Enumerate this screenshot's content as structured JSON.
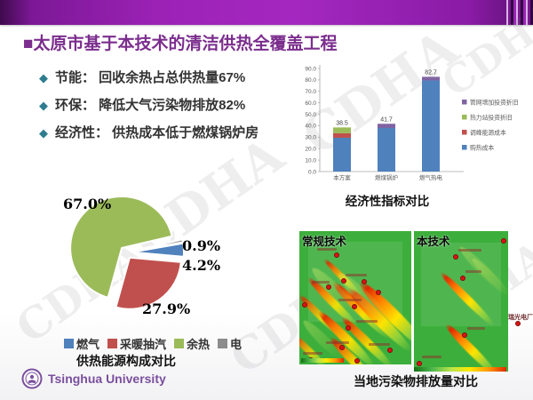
{
  "slide": {
    "header_title_marker": "■",
    "header_title": "太原市基于本技术的清洁供热全覆盖工程",
    "bullet_marker": "◆",
    "bullets": [
      "节能： 回收余热占总供热量67%",
      "环保： 降低大气污染物排放82%",
      "经济性： 供热成本低于燃煤锅炉房"
    ],
    "watermark_text": "CDHA",
    "footer_logo_text": "Tsinghua University"
  },
  "colors": {
    "header_purple": "#9C22B6",
    "title_purple": "#7B2E8D",
    "bullet_diamond_teal": "#2E7D8E",
    "excel_blue": "#4F81BD",
    "excel_red": "#C0504D",
    "excel_green": "#9BBB59",
    "excel_purple": "#8064A2",
    "excel_gray": "#8C8C8C",
    "map_green": "#3CAE3C",
    "tsinghua_purple": "#7A4F9D"
  },
  "maps": {
    "left_title": "常规技术",
    "right_title": "本技术",
    "side_label": "瑞光电厂",
    "caption": "当地污染物排放量对比"
  },
  "chart_data": [
    {
      "type": "bar",
      "subtype": "stacked",
      "caption": "经济性指标对比",
      "categories": [
        "本方案",
        "燃煤锅炉",
        "燃气热电"
      ],
      "series": [
        {
          "name": "购热成本",
          "color": "#4F81BD",
          "values": [
            29.5,
            38.0,
            79.5
          ]
        },
        {
          "name": "调峰能源成本",
          "color": "#C0504D",
          "values": [
            4.0,
            0,
            0
          ]
        },
        {
          "name": "热力站投资折旧",
          "color": "#9BBB59",
          "values": [
            5.0,
            0,
            0
          ]
        },
        {
          "name": "管网增加投资折旧",
          "color": "#8064A2",
          "values": [
            0,
            3.7,
            3.2
          ]
        }
      ],
      "totals": [
        "38.5",
        "41.7",
        "82.7"
      ],
      "ylim": [
        0,
        90
      ],
      "ytick_step": 10,
      "gridlines": false,
      "legend_position": "right",
      "legend_order": [
        "管网增加投资折旧",
        "热力站投资折旧",
        "调峰能源成本",
        "购热成本"
      ]
    },
    {
      "type": "pie",
      "caption": "供热能源构成对比",
      "labels": [
        "燃气",
        "采暖抽汽",
        "余热",
        "电"
      ],
      "values": [
        4.2,
        27.9,
        67.0,
        0.9
      ],
      "colors": [
        "#4F81BD",
        "#C0504D",
        "#9BBB59",
        "#8C8C8C"
      ],
      "data_labels": [
        "4.2%",
        "27.9%",
        "67.0%",
        "0.9%"
      ],
      "start_angle": 80,
      "exploded": true,
      "legend_position": "bottom"
    }
  ]
}
